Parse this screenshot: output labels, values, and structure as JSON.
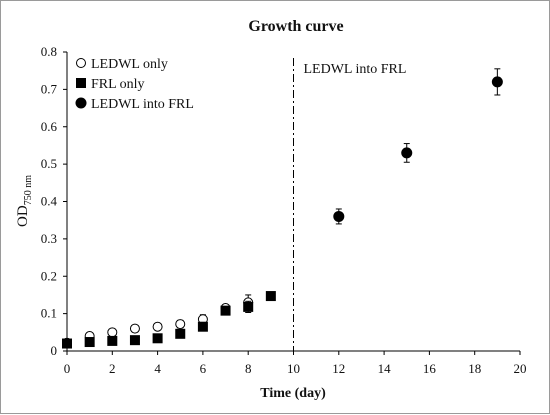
{
  "chart_data": {
    "type": "scatter",
    "title": "Growth curve",
    "xlabel": "Time (day)",
    "ylabel": "OD",
    "ylabel_sub": "750 nm",
    "xlim": [
      0,
      20
    ],
    "ylim": [
      0,
      0.8
    ],
    "x_ticks": [
      "0",
      "2",
      "4",
      "6",
      "8",
      "10",
      "12",
      "14",
      "16",
      "18",
      "20"
    ],
    "y_ticks": [
      "0",
      "0.1",
      "0.2",
      "0.3",
      "0.4",
      "0.5",
      "0.6",
      "0.7",
      "0.8"
    ],
    "grid": false,
    "legend_position": "top-left",
    "series": [
      {
        "name": "LEDWL only",
        "marker": "open-circle",
        "color": "#000000",
        "points": [
          {
            "x": 0,
            "y": 0.022,
            "err": 0
          },
          {
            "x": 1,
            "y": 0.04,
            "err": 0
          },
          {
            "x": 2,
            "y": 0.05,
            "err": 0
          },
          {
            "x": 3,
            "y": 0.06,
            "err": 0
          },
          {
            "x": 4,
            "y": 0.065,
            "err": 0
          },
          {
            "x": 5,
            "y": 0.072,
            "err": 0.01
          },
          {
            "x": 6,
            "y": 0.085,
            "err": 0.012
          },
          {
            "x": 7,
            "y": 0.115,
            "err": 0.008
          },
          {
            "x": 8,
            "y": 0.13,
            "err": 0.02
          }
        ]
      },
      {
        "name": "FRL only",
        "marker": "filled-square",
        "color": "#000000",
        "points": [
          {
            "x": 0,
            "y": 0.02,
            "err": 0
          },
          {
            "x": 1,
            "y": 0.024,
            "err": 0
          },
          {
            "x": 2,
            "y": 0.027,
            "err": 0
          },
          {
            "x": 3,
            "y": 0.029,
            "err": 0
          },
          {
            "x": 4,
            "y": 0.034,
            "err": 0
          },
          {
            "x": 5,
            "y": 0.046,
            "err": 0.006
          },
          {
            "x": 6,
            "y": 0.065,
            "err": 0.008
          },
          {
            "x": 7,
            "y": 0.108,
            "err": 0.01
          },
          {
            "x": 8,
            "y": 0.118,
            "err": 0.015
          },
          {
            "x": 9,
            "y": 0.147,
            "err": 0
          }
        ]
      },
      {
        "name": "LEDWL into FRL",
        "marker": "filled-circle",
        "color": "#000000",
        "points": [
          {
            "x": 12,
            "y": 0.36,
            "err": 0.02
          },
          {
            "x": 15,
            "y": 0.53,
            "err": 0.025
          },
          {
            "x": 19,
            "y": 0.72,
            "err": 0.035
          }
        ]
      }
    ],
    "vertical_line": {
      "x": 10,
      "style": "dash-dot",
      "label": "LEDWL into FRL"
    }
  }
}
